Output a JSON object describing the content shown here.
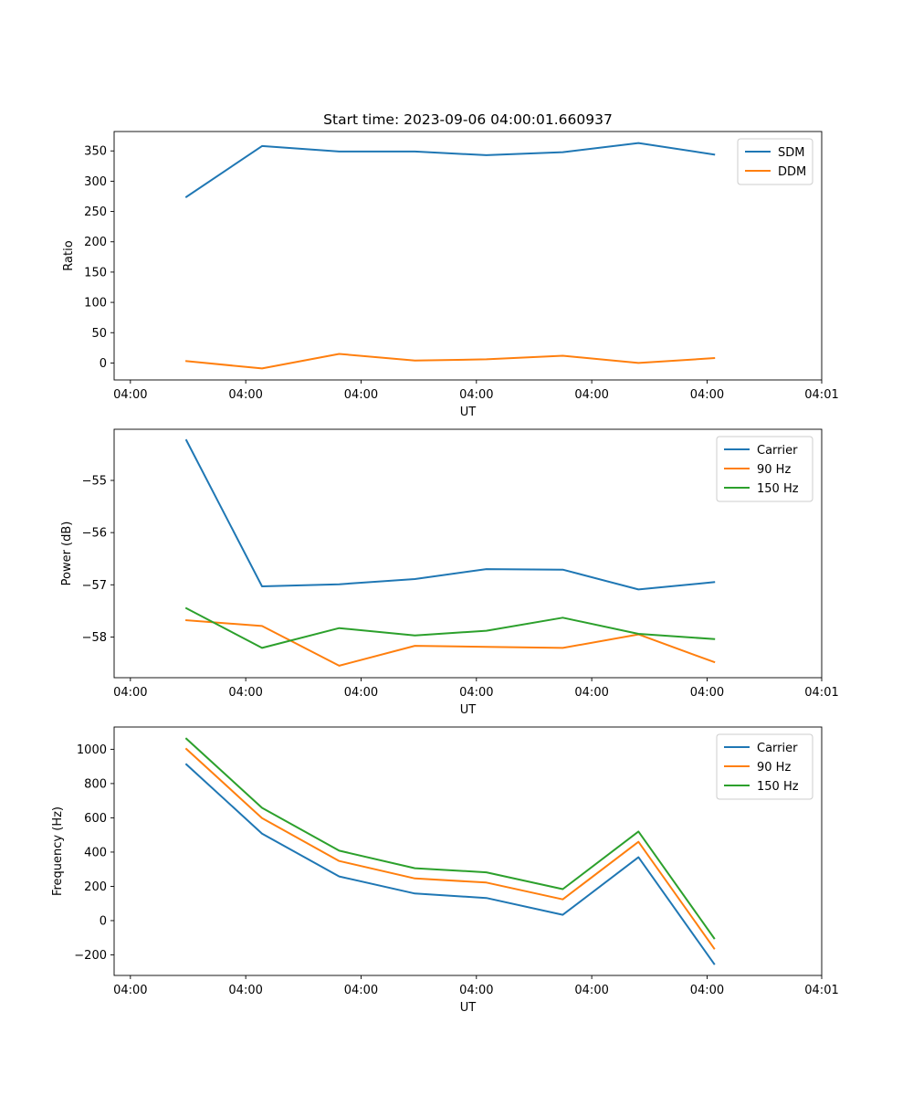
{
  "chart_data": [
    {
      "type": "line",
      "title": "Start time: 2023-09-06 04:00:01.660937",
      "xlabel": "UT",
      "ylabel": "Ratio",
      "xlim": [
        0,
        100
      ],
      "ylim": [
        -28,
        382
      ],
      "x_ticks": [
        {
          "x": 2.3,
          "label": "04:00"
        },
        {
          "x": 18.6,
          "label": "04:00"
        },
        {
          "x": 34.9,
          "label": "04:00"
        },
        {
          "x": 51.2,
          "label": "04:00"
        },
        {
          "x": 67.5,
          "label": "04:00"
        },
        {
          "x": 83.8,
          "label": "04:00"
        },
        {
          "x": 100,
          "label": "04:01"
        }
      ],
      "y_ticks": [
        0,
        50,
        100,
        150,
        200,
        250,
        300,
        350
      ],
      "x": [
        10.2,
        20.9,
        31.8,
        42.5,
        52.6,
        63.4,
        74.1,
        84.8
      ],
      "series": [
        {
          "name": "SDM",
          "color": "#1f77b4",
          "values": [
            274,
            358,
            349,
            349,
            343,
            348,
            363,
            344
          ]
        },
        {
          "name": "DDM",
          "color": "#ff7f0e",
          "values": [
            3,
            -9,
            15,
            4,
            6,
            12,
            0,
            8
          ]
        }
      ],
      "legend": "upper-right"
    },
    {
      "type": "line",
      "title": "",
      "xlabel": "UT",
      "ylabel": "Power (dB)",
      "xlim": [
        0,
        100
      ],
      "ylim": [
        -58.78,
        -54.02
      ],
      "x_ticks": [
        {
          "x": 2.3,
          "label": "04:00"
        },
        {
          "x": 18.6,
          "label": "04:00"
        },
        {
          "x": 34.9,
          "label": "04:00"
        },
        {
          "x": 51.2,
          "label": "04:00"
        },
        {
          "x": 67.5,
          "label": "04:00"
        },
        {
          "x": 83.8,
          "label": "04:00"
        },
        {
          "x": 100,
          "label": "04:01"
        }
      ],
      "y_ticks": [
        -55,
        -56,
        -57,
        -58
      ],
      "x": [
        10.2,
        20.9,
        31.8,
        42.5,
        52.6,
        63.4,
        74.1,
        84.8
      ],
      "series": [
        {
          "name": "Carrier",
          "color": "#1f77b4",
          "values": [
            -54.23,
            -57.03,
            -56.99,
            -56.89,
            -56.7,
            -56.71,
            -57.09,
            -56.95
          ]
        },
        {
          "name": "90 Hz",
          "color": "#ff7f0e",
          "values": [
            -57.68,
            -57.79,
            -58.55,
            -58.17,
            -58.19,
            -58.21,
            -57.95,
            -58.48
          ]
        },
        {
          "name": "150 Hz",
          "color": "#2ca02c",
          "values": [
            -57.45,
            -58.21,
            -57.83,
            -57.97,
            -57.88,
            -57.63,
            -57.94,
            -58.04
          ]
        }
      ],
      "legend": "upper-right"
    },
    {
      "type": "line",
      "title": "",
      "xlabel": "UT",
      "ylabel": "Frequency (Hz)",
      "xlim": [
        0,
        100
      ],
      "ylim": [
        -320,
        1130
      ],
      "x_ticks": [
        {
          "x": 2.3,
          "label": "04:00"
        },
        {
          "x": 18.6,
          "label": "04:00"
        },
        {
          "x": 34.9,
          "label": "04:00"
        },
        {
          "x": 51.2,
          "label": "04:00"
        },
        {
          "x": 67.5,
          "label": "04:00"
        },
        {
          "x": 83.8,
          "label": "04:00"
        },
        {
          "x": 100,
          "label": "04:01"
        }
      ],
      "y_ticks": [
        -200,
        0,
        200,
        400,
        600,
        800,
        1000
      ],
      "x": [
        10.2,
        20.9,
        31.8,
        42.5,
        52.6,
        63.4,
        74.1,
        84.8
      ],
      "series": [
        {
          "name": "Carrier",
          "color": "#1f77b4",
          "values": [
            912,
            508,
            258,
            158,
            132,
            34,
            370,
            -253
          ]
        },
        {
          "name": "90 Hz",
          "color": "#ff7f0e",
          "values": [
            1002,
            598,
            348,
            246,
            222,
            124,
            460,
            -163
          ]
        },
        {
          "name": "150 Hz",
          "color": "#2ca02c",
          "values": [
            1062,
            658,
            408,
            306,
            282,
            184,
            520,
            -103
          ]
        }
      ],
      "legend": "upper-right"
    }
  ]
}
